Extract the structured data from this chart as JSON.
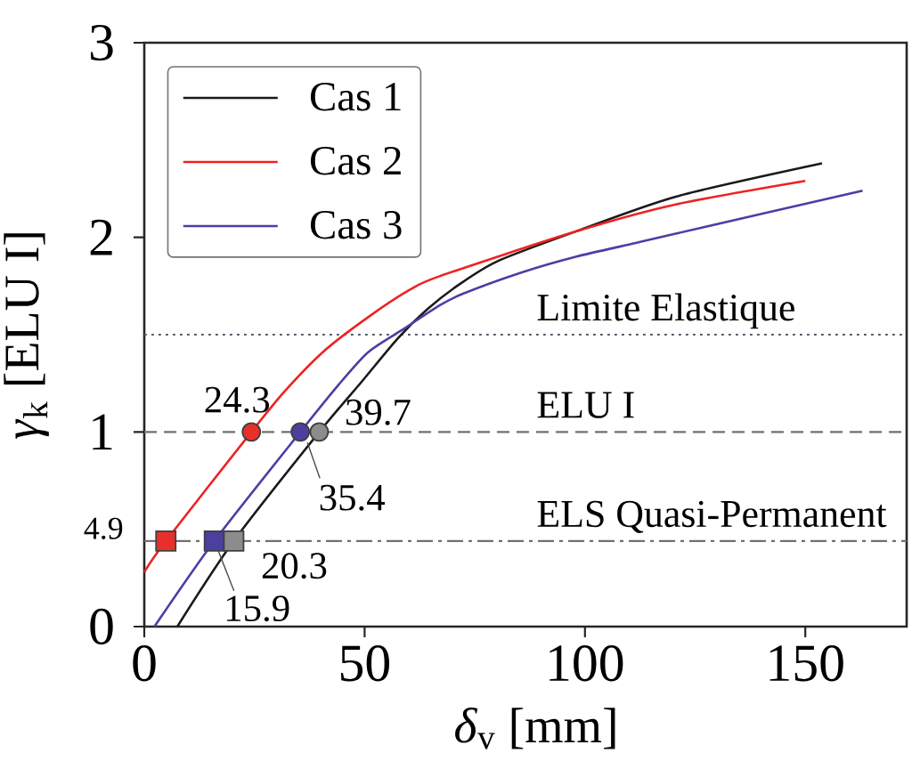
{
  "chart_data": {
    "type": "line",
    "xlabel": "*δ*$_{v}$ [mm]",
    "ylabel": "*γ*$_{k}$ [ELU I]",
    "xlim": [
      0,
      173
    ],
    "ylim": [
      0,
      3
    ],
    "xticks": [
      0,
      50,
      100,
      150
    ],
    "yticks": [
      0,
      1,
      2,
      3
    ],
    "legend": "top left",
    "series": [
      {
        "name": "Cas 1",
        "color": "#1a1a1a",
        "x": [
          7.5,
          20.3,
          39.7,
          49.4,
          57.5,
          64.2,
          71.6,
          80.4,
          97.9,
          120.8,
          153.8
        ],
        "values": [
          0,
          0.44,
          1,
          1.26,
          1.48,
          1.63,
          1.76,
          1.88,
          2.03,
          2.21,
          2.38
        ]
      },
      {
        "name": "Cas 2",
        "color": "#ee2222",
        "x": [
          0,
          4.9,
          24.3,
          31.9,
          41,
          50.8,
          60.2,
          67,
          97.9,
          120.8,
          150
        ],
        "values": [
          0.28,
          0.44,
          1,
          1.21,
          1.42,
          1.59,
          1.73,
          1.8,
          2.03,
          2.17,
          2.29
        ]
      },
      {
        "name": "Cas 3",
        "color": "#4a3fa5",
        "x": [
          2.3,
          15.9,
          35.4,
          44,
          50.8,
          58.9,
          67,
          72.3,
          85.7,
          97.9,
          111.3,
          120.8,
          163
        ],
        "values": [
          0,
          0.44,
          1,
          1.24,
          1.41,
          1.53,
          1.65,
          1.71,
          1.82,
          1.9,
          1.97,
          2.02,
          2.24
        ]
      },
      {
        "type": "scatter",
        "marker": "circle",
        "x": [
          24.3,
          35.4,
          39.7
        ],
        "values": [
          1,
          1,
          1
        ],
        "colors": [
          "#e8302a",
          "#4b3fa0",
          "#8c8c8c"
        ]
      },
      {
        "type": "scatter",
        "marker": "square",
        "x": [
          4.9,
          15.9,
          20.3
        ],
        "values": [
          0.44,
          0.44,
          0.44
        ],
        "colors": [
          "#e8302a",
          "#4b3fa0",
          "#8c8c8c"
        ]
      }
    ],
    "ref_lines": [
      {
        "axis": "y",
        "value": 1.5,
        "label": "Limite Elastique",
        "line_style": "dotted",
        "color": "#505a6a"
      },
      {
        "axis": "y",
        "value": 1,
        "label": "ELU I",
        "line_style": "dashed",
        "color": "#707070"
      },
      {
        "axis": "y",
        "value": 0.44,
        "label": "ELS Quasi-Permanent",
        "line_style": "dashdot",
        "color": "#707070"
      }
    ],
    "annotations": [
      {
        "text": "24.3",
        "x": 24.3,
        "y": 1
      },
      {
        "text": "35.4",
        "x": 35.4,
        "y": 1
      },
      {
        "text": "39.7",
        "x": 39.7,
        "y": 1
      },
      {
        "text": "4.9",
        "x": 4.9,
        "y": 0.44
      },
      {
        "text": "15.9",
        "x": 15.9,
        "y": 0.44
      },
      {
        "text": "20.3",
        "x": 20.3,
        "y": 0.44
      }
    ]
  }
}
